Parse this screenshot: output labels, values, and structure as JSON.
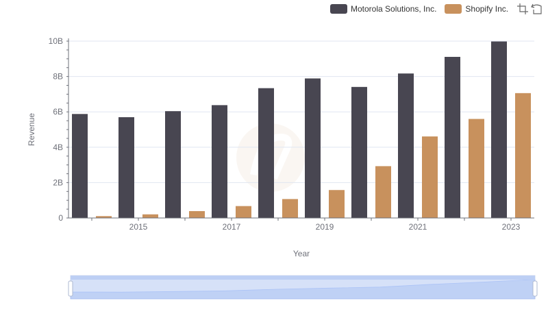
{
  "legend": {
    "items": [
      {
        "label": "Motorola Solutions, Inc.",
        "color": "#484651"
      },
      {
        "label": "Shopify Inc.",
        "color": "#c8915d"
      }
    ]
  },
  "toolbox": {
    "icons": [
      "zoom-icon",
      "reset-zoom-icon"
    ]
  },
  "chart_data": {
    "type": "bar",
    "categories": [
      "2014",
      "2015",
      "2016",
      "2017",
      "2018",
      "2019",
      "2020",
      "2021",
      "2022",
      "2023"
    ],
    "x_tick_labels": [
      "2015",
      "2017",
      "2019",
      "2021",
      "2023"
    ],
    "series": [
      {
        "name": "Motorola Solutions, Inc.",
        "color": "#484651",
        "values": [
          5.88,
          5.7,
          6.04,
          6.38,
          7.34,
          7.89,
          7.41,
          8.17,
          9.11,
          9.98
        ]
      },
      {
        "name": "Shopify Inc.",
        "color": "#c8915d",
        "values": [
          0.105,
          0.205,
          0.389,
          0.673,
          1.07,
          1.58,
          2.93,
          4.61,
          5.6,
          7.06
        ]
      }
    ],
    "xlabel": "Year",
    "ylabel": "Revenue",
    "ylim": [
      0,
      10
    ],
    "y_ticks": [
      0,
      2,
      4,
      6,
      8,
      10
    ],
    "y_tick_labels": [
      "0",
      "2B",
      "4B",
      "6B",
      "8B",
      "10B"
    ],
    "grid": true,
    "legend_position": "top-right",
    "data_zoom": {
      "start": 0,
      "end": 100
    }
  }
}
